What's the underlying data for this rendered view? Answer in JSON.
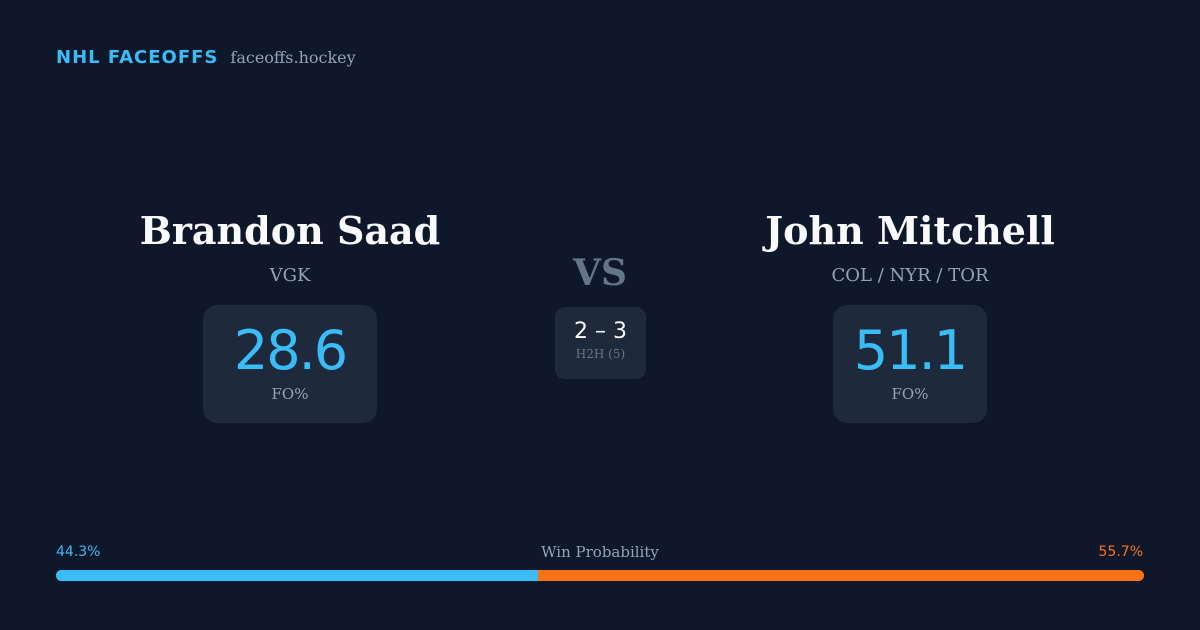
{
  "brand": {
    "name": "NHL FACEOFFS",
    "domain": "faceoffs.hockey"
  },
  "player_left": {
    "name": "Brandon Saad",
    "team": "VGK",
    "stat_value": "28.6",
    "stat_label": "FO%"
  },
  "player_right": {
    "name": "John Mitchell",
    "team": "COL / NYR / TOR",
    "stat_value": "51.1",
    "stat_label": "FO%"
  },
  "versus": {
    "label": "VS",
    "h2h_score": "2 – 3",
    "h2h_label": "H2H (5)"
  },
  "win_probability": {
    "title": "Win Probability",
    "left_label": "44.3%",
    "right_label": "55.7%",
    "left_value": 44.3,
    "right_value": 55.7
  },
  "colors": {
    "background": "#0f172a",
    "card": "#1e293b",
    "accent_left": "#38bdf8",
    "accent_right": "#f97316"
  }
}
